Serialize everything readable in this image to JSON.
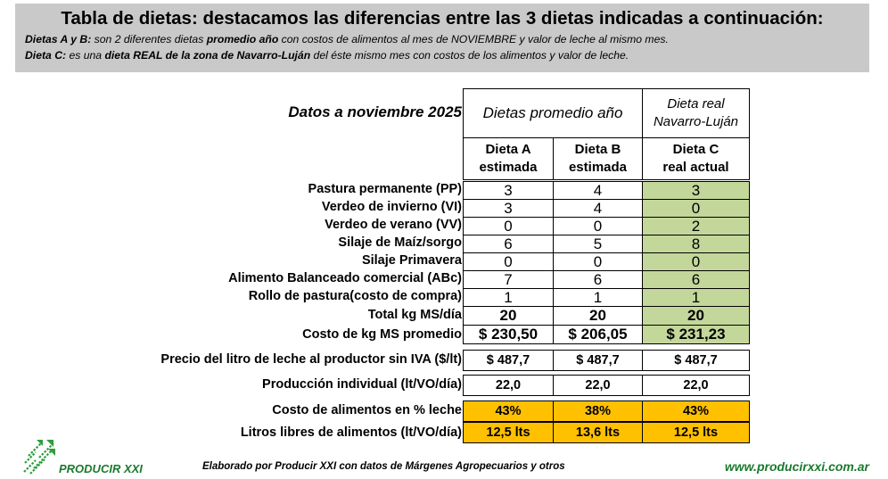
{
  "header": {
    "title": "Tabla de dietas: destacamos las diferencias entre las 3 dietas indicadas a continuación:",
    "line1_bold": "Dietas A y B:",
    "line1_a": " son 2 diferentes dietas ",
    "line1_bold2": "promedio año",
    "line1_b": " con costos de alimentos al mes de NOVIEMBRE y valor de leche al mismo mes.",
    "line2_bold": "Dieta C:",
    "line2_a": " es una ",
    "line2_bold2": "dieta REAL de la zona de Navarro-Luján",
    "line2_b": " del éste mismo mes con costos de los alimentos y valor de leche."
  },
  "table": {
    "title": "Datos a noviembre 2025",
    "group_promedio": "Dietas promedio año",
    "group_real_line1": "Dieta real",
    "group_real_line2": "Navarro-Luján",
    "col_a_line1": "Dieta A",
    "col_a_line2": "estimada",
    "col_b_line1": "Dieta B",
    "col_b_line2": "estimada",
    "col_c_line1": "Dieta C",
    "col_c_line2": "real actual",
    "rows": [
      {
        "label": "Pastura permanente (PP)",
        "a": "3",
        "b": "4",
        "c": "3"
      },
      {
        "label": "Verdeo de invierno (VI)",
        "a": "3",
        "b": "4",
        "c": "0"
      },
      {
        "label": "Verdeo de verano (VV)",
        "a": "0",
        "b": "0",
        "c": "2"
      },
      {
        "label": "Silaje de Maíz/sorgo",
        "a": "6",
        "b": "5",
        "c": "8"
      },
      {
        "label": "Silaje Primavera",
        "a": "0",
        "b": "0",
        "c": "0"
      },
      {
        "label": "Alimento Balanceado comercial (ABc)",
        "a": "7",
        "b": "6",
        "c": "6"
      },
      {
        "label": "Rollo de pastura(costo de compra)",
        "a": "1",
        "b": "1",
        "c": "1"
      }
    ],
    "total": {
      "label": "Total kg MS/día",
      "a": "20",
      "b": "20",
      "c": "20"
    },
    "costo": {
      "label": "Costo de kg MS promedio",
      "a": "$ 230,50",
      "b": "$ 206,05",
      "c": "$ 231,23"
    },
    "precio": {
      "label": "Precio del litro de leche al productor sin IVA ($/lt)",
      "a": "$ 487,7",
      "b": "$ 487,7",
      "c": "$ 487,7"
    },
    "produccion": {
      "label": "Producción individual (lt/VO/día)",
      "a": "22,0",
      "b": "22,0",
      "c": "22,0"
    },
    "costo_pct": {
      "label": "Costo de alimentos en % leche",
      "a": "43%",
      "b": "38%",
      "c": "43%"
    },
    "litros": {
      "label": "Litros libres de alimentos (lt/VO/día)",
      "a": "12,5 lts",
      "b": "13,6 lts",
      "c": "12,5 lts"
    }
  },
  "footer": {
    "logo_text": "PRODUCIR XXI",
    "credit": "Elaborado por Producir XXI con datos de Márgenes Agropecuarios y otros",
    "website": "www.producirxxi.com.ar"
  },
  "colors": {
    "banner": "#c9c9c9",
    "green_cell": "#c4d79b",
    "orange_cell": "#ffc000",
    "brand_green": "#1a7a2e"
  }
}
